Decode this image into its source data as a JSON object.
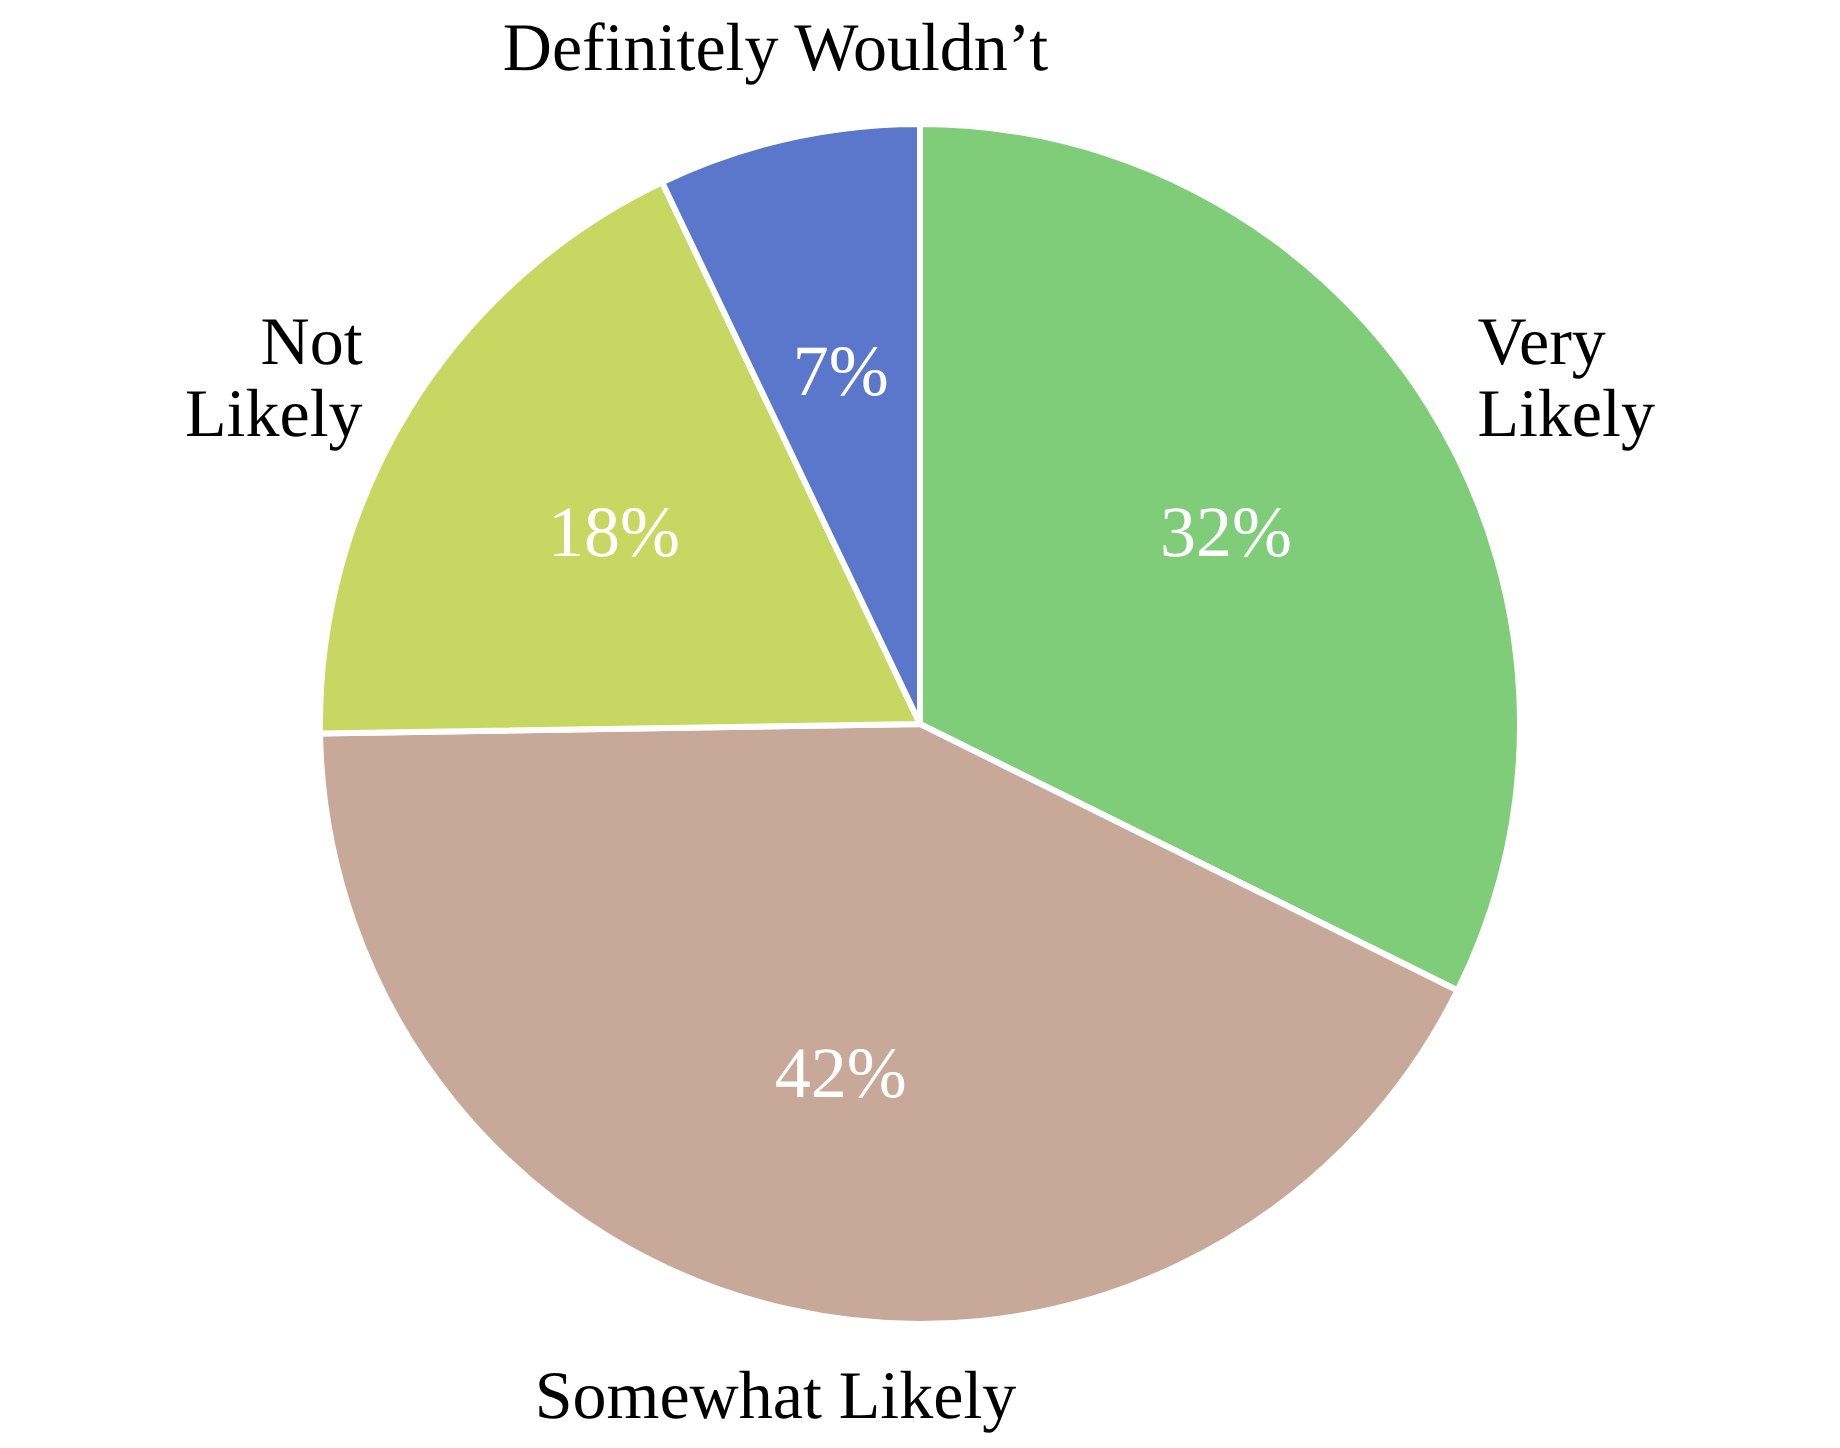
{
  "chart_data": {
    "type": "pie",
    "categories": [
      "Very Likely",
      "Somewhat Likely",
      "Not Likely",
      "Definitely Wouldn’t"
    ],
    "values": [
      32,
      42,
      18,
      7
    ],
    "colors": [
      "#7fcd78",
      "#c8a898",
      "#c6d862",
      "#5b77cc"
    ],
    "value_labels": [
      "32%",
      "42%",
      "18%",
      "7%"
    ]
  }
}
